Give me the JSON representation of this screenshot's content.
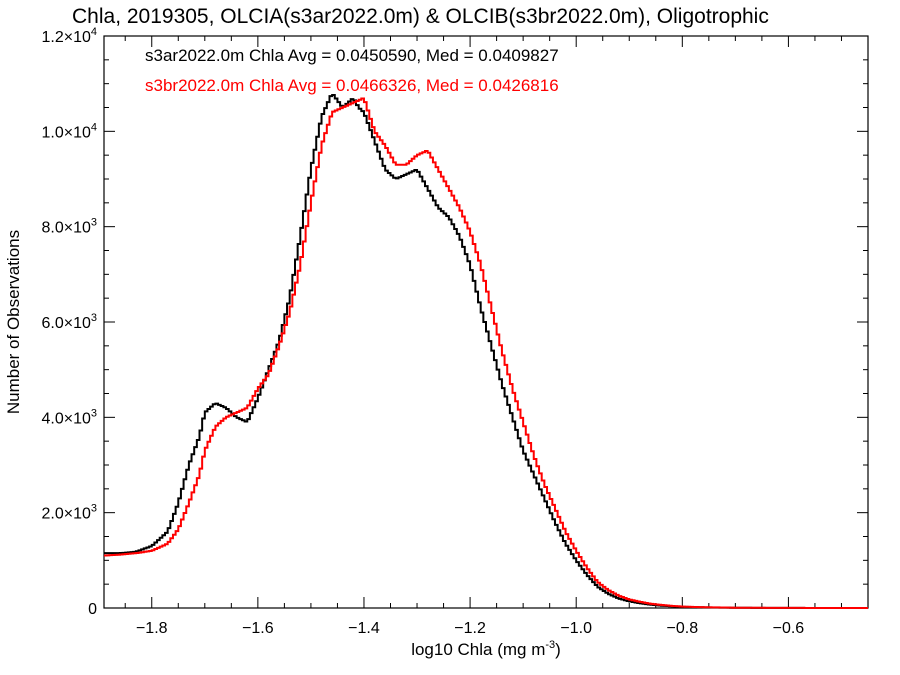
{
  "chart_data": {
    "type": "line",
    "title": "Chla, 2019305, OLCIA(s3ar2022.0m) & OLCIB(s3br2022.0m), Oligotrophic",
    "xlabel": "log10 Chla (mg m",
    "xlabel_sup": "-3",
    "xlabel_close": ")",
    "ylabel": "Number of Observations",
    "xlim": [
      -1.89,
      -0.45
    ],
    "ylim": [
      0,
      12000
    ],
    "grid": false,
    "legend_position": "top-left",
    "x_ticks": [
      {
        "value": -1.8,
        "label": "−1.8"
      },
      {
        "value": -1.6,
        "label": "−1.6"
      },
      {
        "value": -1.4,
        "label": "−1.4"
      },
      {
        "value": -1.2,
        "label": "−1.2"
      },
      {
        "value": -1.0,
        "label": "−1.0"
      },
      {
        "value": -0.8,
        "label": "−0.8"
      },
      {
        "value": -0.6,
        "label": "−0.6"
      }
    ],
    "y_ticks": [
      {
        "value": 0,
        "mant": "0",
        "exp": ""
      },
      {
        "value": 2000,
        "mant": "2.0×10",
        "exp": "3"
      },
      {
        "value": 4000,
        "mant": "4.0×10",
        "exp": "3"
      },
      {
        "value": 6000,
        "mant": "6.0×10",
        "exp": "3"
      },
      {
        "value": 8000,
        "mant": "8.0×10",
        "exp": "3"
      },
      {
        "value": 10000,
        "mant": "1.0×10",
        "exp": "4"
      },
      {
        "value": 12000,
        "mant": "1.2×10",
        "exp": "4"
      }
    ],
    "series": [
      {
        "label": "s3ar2022.0m Chla Avg = 0.0450590, Med = 0.0409827",
        "color": "#000000",
        "x": [
          -1.89,
          -1.86,
          -1.83,
          -1.8,
          -1.77,
          -1.75,
          -1.73,
          -1.71,
          -1.7,
          -1.68,
          -1.66,
          -1.64,
          -1.62,
          -1.6,
          -1.58,
          -1.56,
          -1.54,
          -1.52,
          -1.5,
          -1.48,
          -1.46,
          -1.44,
          -1.42,
          -1.41,
          -1.4,
          -1.38,
          -1.36,
          -1.34,
          -1.32,
          -1.3,
          -1.28,
          -1.26,
          -1.24,
          -1.22,
          -1.2,
          -1.18,
          -1.16,
          -1.14,
          -1.12,
          -1.1,
          -1.08,
          -1.06,
          -1.04,
          -1.02,
          -1.0,
          -0.98,
          -0.96,
          -0.94,
          -0.92,
          -0.9,
          -0.88,
          -0.86,
          -0.84,
          -0.82,
          -0.8,
          -0.78,
          -0.75,
          -0.72,
          -0.7,
          -0.65,
          -0.6,
          -0.55,
          -0.5,
          -0.45
        ],
        "y": [
          1150,
          1150,
          1180,
          1300,
          1600,
          2200,
          3000,
          3600,
          4100,
          4300,
          4200,
          4000,
          3900,
          4400,
          5000,
          5600,
          6500,
          7800,
          9200,
          10300,
          10800,
          10500,
          10700,
          10500,
          10400,
          9800,
          9200,
          9000,
          9100,
          9200,
          8800,
          8400,
          8200,
          7800,
          7200,
          6300,
          5500,
          4700,
          4000,
          3300,
          2800,
          2300,
          1800,
          1350,
          1000,
          700,
          450,
          300,
          200,
          140,
          100,
          70,
          50,
          35,
          25,
          18,
          12,
          8,
          5,
          3,
          2,
          1,
          0,
          0
        ]
      },
      {
        "label": "s3br2022.0m Chla Avg = 0.0466326, Med = 0.0426816",
        "color": "#ff0000",
        "x": [
          -1.89,
          -1.86,
          -1.83,
          -1.8,
          -1.77,
          -1.75,
          -1.73,
          -1.71,
          -1.7,
          -1.68,
          -1.66,
          -1.64,
          -1.62,
          -1.6,
          -1.58,
          -1.56,
          -1.54,
          -1.52,
          -1.5,
          -1.48,
          -1.46,
          -1.44,
          -1.42,
          -1.41,
          -1.4,
          -1.38,
          -1.36,
          -1.34,
          -1.32,
          -1.3,
          -1.28,
          -1.26,
          -1.24,
          -1.22,
          -1.2,
          -1.18,
          -1.16,
          -1.14,
          -1.12,
          -1.1,
          -1.08,
          -1.06,
          -1.04,
          -1.02,
          -1.0,
          -0.98,
          -0.96,
          -0.94,
          -0.92,
          -0.9,
          -0.88,
          -0.86,
          -0.84,
          -0.82,
          -0.8,
          -0.78,
          -0.75,
          -0.72,
          -0.7,
          -0.65,
          -0.6,
          -0.55,
          -0.5,
          -0.45
        ],
        "y": [
          1100,
          1120,
          1150,
          1200,
          1350,
          1650,
          2200,
          2800,
          3300,
          3800,
          4000,
          4100,
          4200,
          4600,
          4900,
          5500,
          6200,
          7200,
          8500,
          9700,
          10400,
          10500,
          10600,
          10650,
          10700,
          10000,
          9700,
          9300,
          9300,
          9500,
          9600,
          9200,
          8800,
          8400,
          7900,
          7200,
          6300,
          5400,
          4600,
          3900,
          3200,
          2600,
          2100,
          1600,
          1200,
          850,
          550,
          380,
          260,
          180,
          130,
          90,
          65,
          45,
          30,
          22,
          15,
          10,
          6,
          4,
          2,
          1,
          0,
          0
        ]
      }
    ]
  }
}
